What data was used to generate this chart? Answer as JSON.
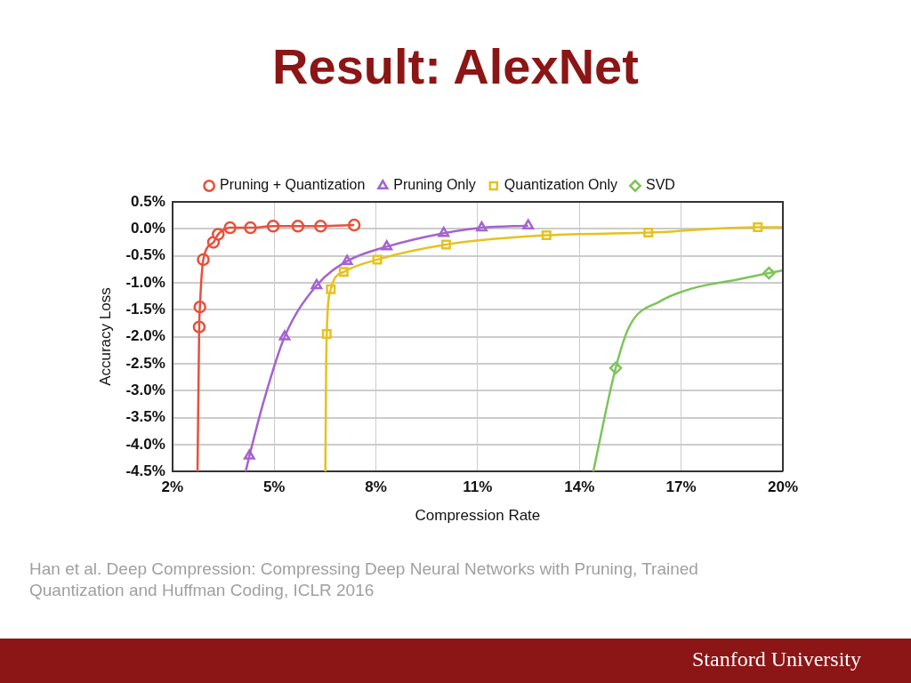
{
  "chart_data": {
    "type": "scatter",
    "title": "Result: AlexNet",
    "xlabel": "Compression Rate",
    "ylabel": "Accuracy Loss",
    "annotations": [
      "Han et al. Deep Compression: Compressing Deep Neural Networks with Pruning, Trained Quantization and Huffman Coding, ICLR 2016",
      "Stanford University"
    ],
    "xlim": [
      2,
      20
    ],
    "xticks": [
      {
        "value": 2,
        "label": "2%"
      },
      {
        "value": 5,
        "label": "5%"
      },
      {
        "value": 8,
        "label": "8%"
      },
      {
        "value": 11,
        "label": "11%"
      },
      {
        "value": 14,
        "label": "14%"
      },
      {
        "value": 17,
        "label": "17%"
      },
      {
        "value": 20,
        "label": "20%"
      }
    ],
    "ylim": [
      -4.5,
      0.5
    ],
    "yticks": [
      {
        "value": 0.5,
        "label": "0.5%"
      },
      {
        "value": 0,
        "label": "0.0%"
      },
      {
        "value": -0.5,
        "label": "-0.5%"
      },
      {
        "value": -1,
        "label": "-1.0%"
      },
      {
        "value": -1.5,
        "label": "-1.5%"
      },
      {
        "value": -2,
        "label": "-2.0%"
      },
      {
        "value": -2.5,
        "label": "-2.5%"
      },
      {
        "value": -3,
        "label": "-3.0%"
      },
      {
        "value": -3.5,
        "label": "-3.5%"
      },
      {
        "value": -4,
        "label": "-4.0%"
      },
      {
        "value": -4.5,
        "label": "-4.5%"
      }
    ],
    "grid": true,
    "legend": "top",
    "series": [
      {
        "type": "line",
        "marker": "none",
        "color": "#e8503a",
        "x": [
          2.74,
          2.79,
          2.81,
          2.91,
          3.21,
          3.35,
          3.7,
          4.3,
          4.97,
          5.7,
          6.37,
          7.36
        ],
        "values": [
          -4.5,
          -1.82,
          -1.45,
          -0.57,
          -0.25,
          -0.1,
          0.02,
          0.02,
          0.05,
          0.05,
          0.05,
          0.07
        ]
      },
      {
        "type": "line",
        "marker": "none",
        "color": "#a463d0",
        "x": [
          4.16,
          4.27,
          4.7,
          5.31,
          6.25,
          7.15,
          8.32,
          10.0,
          11.12,
          12.49
        ],
        "values": [
          -4.5,
          -4.21,
          -3.18,
          -2.0,
          -1.05,
          -0.6,
          -0.33,
          -0.08,
          0.02,
          0.06
        ]
      },
      {
        "type": "line",
        "marker": "none",
        "color": "#e6c21e",
        "x": [
          6.51,
          6.53,
          6.55,
          6.67,
          7.05,
          8.04,
          10.07,
          13.03,
          16.03,
          19.26,
          20
        ],
        "values": [
          -4.5,
          -2.72,
          -1.95,
          -1.12,
          -0.8,
          -0.57,
          -0.29,
          -0.12,
          -0.07,
          0.03,
          0.03
        ]
      },
      {
        "type": "line",
        "marker": "none",
        "color": "#7dc45a",
        "x": [
          14.41,
          15.07,
          15.48,
          16.39,
          17.3,
          18.67,
          19.59,
          20
        ],
        "values": [
          -4.5,
          -2.58,
          -1.8,
          -1.34,
          -1.11,
          -0.94,
          -0.82,
          -0.77
        ]
      },
      {
        "name": "Pruning + Quantization",
        "marker": "circle",
        "color": "#e8503a",
        "x": [
          2.79,
          2.81,
          2.91,
          3.21,
          3.35,
          3.7,
          4.3,
          4.97,
          5.7,
          6.37,
          7.36
        ],
        "values": [
          -1.82,
          -1.45,
          -0.57,
          -0.25,
          -0.1,
          0.02,
          0.02,
          0.05,
          0.05,
          0.05,
          0.07
        ]
      },
      {
        "name": "Pruning Only",
        "marker": "triangle",
        "color": "#a463d0",
        "x": [
          4.27,
          5.31,
          6.25,
          7.15,
          8.32,
          10.0,
          11.12,
          12.49
        ],
        "values": [
          -4.21,
          -2.0,
          -1.05,
          -0.6,
          -0.33,
          -0.08,
          0.02,
          0.06
        ]
      },
      {
        "name": "Quantization Only",
        "marker": "square",
        "color": "#e6c21e",
        "x": [
          6.55,
          6.67,
          7.05,
          8.04,
          10.07,
          13.03,
          16.03,
          19.26
        ],
        "values": [
          -1.95,
          -1.12,
          -0.8,
          -0.57,
          -0.29,
          -0.12,
          -0.07,
          0.03
        ]
      },
      {
        "name": "SVD",
        "marker": "diamond",
        "color": "#7dc45a",
        "x": [
          15.07,
          19.59
        ],
        "values": [
          -2.58,
          -0.82
        ]
      }
    ]
  }
}
